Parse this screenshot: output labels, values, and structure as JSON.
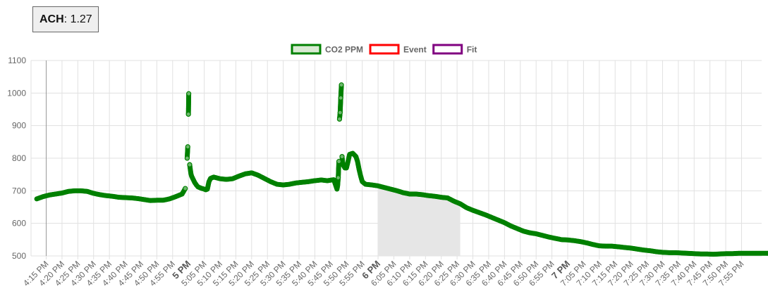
{
  "metric": {
    "label": "ACH",
    "value": ": 1.27"
  },
  "chart_data": {
    "type": "scatter",
    "legend_position": "top-center",
    "grid": true,
    "ylim": [
      500,
      1100
    ],
    "yticks": [
      500,
      600,
      700,
      800,
      900,
      1000,
      1100
    ],
    "xlim_minutes": [
      0,
      225
    ],
    "x_unit": "minutes after 4:10 PM",
    "xticks": [
      {
        "m": 5,
        "label": "4:15 PM",
        "bold": false
      },
      {
        "m": 10,
        "label": "4:20 PM",
        "bold": false
      },
      {
        "m": 15,
        "label": "4:25 PM",
        "bold": false
      },
      {
        "m": 20,
        "label": "4:30 PM",
        "bold": false
      },
      {
        "m": 25,
        "label": "4:35 PM",
        "bold": false
      },
      {
        "m": 30,
        "label": "4:40 PM",
        "bold": false
      },
      {
        "m": 35,
        "label": "4:45 PM",
        "bold": false
      },
      {
        "m": 40,
        "label": "4:50 PM",
        "bold": false
      },
      {
        "m": 45,
        "label": "4:55 PM",
        "bold": false
      },
      {
        "m": 50,
        "label": "5 PM",
        "bold": true
      },
      {
        "m": 55,
        "label": "5:05 PM",
        "bold": false
      },
      {
        "m": 60,
        "label": "5:10 PM",
        "bold": false
      },
      {
        "m": 65,
        "label": "5:15 PM",
        "bold": false
      },
      {
        "m": 70,
        "label": "5:20 PM",
        "bold": false
      },
      {
        "m": 75,
        "label": "5:25 PM",
        "bold": false
      },
      {
        "m": 80,
        "label": "5:30 PM",
        "bold": false
      },
      {
        "m": 85,
        "label": "5:35 PM",
        "bold": false
      },
      {
        "m": 90,
        "label": "5:40 PM",
        "bold": false
      },
      {
        "m": 95,
        "label": "5:45 PM",
        "bold": false
      },
      {
        "m": 100,
        "label": "5:50 PM",
        "bold": false
      },
      {
        "m": 105,
        "label": "5:55 PM",
        "bold": false
      },
      {
        "m": 110,
        "label": "6 PM",
        "bold": true
      },
      {
        "m": 115,
        "label": "6:05 PM",
        "bold": false
      },
      {
        "m": 120,
        "label": "6:10 PM",
        "bold": false
      },
      {
        "m": 125,
        "label": "6:15 PM",
        "bold": false
      },
      {
        "m": 130,
        "label": "6:20 PM",
        "bold": false
      },
      {
        "m": 135,
        "label": "6:25 PM",
        "bold": false
      },
      {
        "m": 140,
        "label": "6:30 PM",
        "bold": false
      },
      {
        "m": 145,
        "label": "6:35 PM",
        "bold": false
      },
      {
        "m": 150,
        "label": "6:40 PM",
        "bold": false
      },
      {
        "m": 155,
        "label": "6:45 PM",
        "bold": false
      },
      {
        "m": 160,
        "label": "6:50 PM",
        "bold": false
      },
      {
        "m": 165,
        "label": "6:55 PM",
        "bold": false
      },
      {
        "m": 170,
        "label": "7 PM",
        "bold": true
      },
      {
        "m": 175,
        "label": "7:05 PM",
        "bold": false
      },
      {
        "m": 180,
        "label": "7:10 PM",
        "bold": false
      },
      {
        "m": 185,
        "label": "7:15 PM",
        "bold": false
      },
      {
        "m": 190,
        "label": "7:20 PM",
        "bold": false
      },
      {
        "m": 195,
        "label": "7:25 PM",
        "bold": false
      },
      {
        "m": 200,
        "label": "7:30 PM",
        "bold": false
      },
      {
        "m": 205,
        "label": "7:35 PM",
        "bold": false
      },
      {
        "m": 210,
        "label": "7:40 PM",
        "bold": false
      },
      {
        "m": 215,
        "label": "7:45 PM",
        "bold": false
      },
      {
        "m": 220,
        "label": "7:50 PM",
        "bold": false
      },
      {
        "m": 225,
        "label": "7:55 PM",
        "bold": false
      }
    ],
    "event_line_m": 5,
    "fit_region": {
      "start_m": 110,
      "end_m": 136
    },
    "series": [
      {
        "name": "CO2 PPM",
        "color": "#008000",
        "fill": "#d9ead3",
        "points": [
          [
            2,
            675
          ],
          [
            4,
            682
          ],
          [
            6,
            687
          ],
          [
            8,
            690
          ],
          [
            10,
            693
          ],
          [
            12,
            698
          ],
          [
            14,
            700
          ],
          [
            16,
            700
          ],
          [
            18,
            698
          ],
          [
            20,
            692
          ],
          [
            22,
            688
          ],
          [
            24,
            685
          ],
          [
            26,
            683
          ],
          [
            28,
            680
          ],
          [
            30,
            679
          ],
          [
            32,
            678
          ],
          [
            34,
            676
          ],
          [
            36,
            673
          ],
          [
            38,
            670
          ],
          [
            40,
            671
          ],
          [
            42,
            671
          ],
          [
            44,
            675
          ],
          [
            46,
            682
          ],
          [
            48,
            690
          ],
          [
            49,
            707
          ],
          [
            49.6,
            800
          ],
          [
            49.8,
            835
          ],
          [
            50,
            935
          ],
          [
            50.1,
            998
          ],
          [
            50.4,
            780
          ],
          [
            50.6,
            765
          ],
          [
            50.8,
            752
          ],
          [
            51,
            745
          ],
          [
            51.5,
            735
          ],
          [
            52,
            725
          ],
          [
            52.5,
            718
          ],
          [
            53,
            712
          ],
          [
            54,
            708
          ],
          [
            55,
            705
          ],
          [
            55.5,
            703
          ],
          [
            56,
            705
          ],
          [
            56.5,
            728
          ],
          [
            57,
            738
          ],
          [
            58,
            742
          ],
          [
            60,
            737
          ],
          [
            62,
            735
          ],
          [
            64,
            737
          ],
          [
            66,
            745
          ],
          [
            68,
            752
          ],
          [
            70,
            755
          ],
          [
            72,
            748
          ],
          [
            74,
            738
          ],
          [
            76,
            728
          ],
          [
            78,
            720
          ],
          [
            80,
            718
          ],
          [
            82,
            720
          ],
          [
            84,
            724
          ],
          [
            86,
            726
          ],
          [
            88,
            728
          ],
          [
            90,
            731
          ],
          [
            92,
            733
          ],
          [
            94,
            731
          ],
          [
            96,
            734
          ],
          [
            97,
            705
          ],
          [
            97.2,
            715
          ],
          [
            97.4,
            740
          ],
          [
            97.6,
            790
          ],
          [
            97.8,
            920
          ],
          [
            98,
            940
          ],
          [
            98.2,
            985
          ],
          [
            98.4,
            1025
          ],
          [
            98.6,
            805
          ],
          [
            98.8,
            785
          ],
          [
            99,
            778
          ],
          [
            99.5,
            770
          ],
          [
            100,
            770
          ],
          [
            100.5,
            790
          ],
          [
            101,
            812
          ],
          [
            102,
            815
          ],
          [
            103,
            805
          ],
          [
            103.5,
            790
          ],
          [
            104,
            765
          ],
          [
            104.5,
            745
          ],
          [
            105,
            728
          ],
          [
            106,
            720
          ],
          [
            108,
            718
          ],
          [
            110,
            715
          ],
          [
            112,
            710
          ],
          [
            114,
            705
          ],
          [
            116,
            700
          ],
          [
            118,
            694
          ],
          [
            120,
            690
          ],
          [
            122,
            690
          ],
          [
            124,
            688
          ],
          [
            126,
            685
          ],
          [
            128,
            683
          ],
          [
            130,
            680
          ],
          [
            132,
            678
          ],
          [
            134,
            668
          ],
          [
            136,
            660
          ],
          [
            138,
            648
          ],
          [
            140,
            640
          ],
          [
            142,
            633
          ],
          [
            144,
            626
          ],
          [
            146,
            618
          ],
          [
            148,
            610
          ],
          [
            150,
            602
          ],
          [
            152,
            592
          ],
          [
            154,
            584
          ],
          [
            156,
            576
          ],
          [
            158,
            571
          ],
          [
            160,
            568
          ],
          [
            162,
            563
          ],
          [
            164,
            558
          ],
          [
            166,
            554
          ],
          [
            168,
            550
          ],
          [
            170,
            549
          ],
          [
            172,
            547
          ],
          [
            174,
            544
          ],
          [
            176,
            540
          ],
          [
            178,
            535
          ],
          [
            180,
            531
          ],
          [
            182,
            530
          ],
          [
            184,
            530
          ],
          [
            186,
            528
          ],
          [
            188,
            526
          ],
          [
            190,
            524
          ],
          [
            192,
            521
          ],
          [
            194,
            518
          ],
          [
            196,
            516
          ],
          [
            198,
            513
          ],
          [
            200,
            511
          ],
          [
            202,
            510
          ],
          [
            204,
            510
          ],
          [
            206,
            509
          ],
          [
            208,
            508
          ],
          [
            210,
            507
          ],
          [
            212,
            506
          ],
          [
            214,
            506
          ],
          [
            216,
            505
          ],
          [
            218,
            506
          ],
          [
            220,
            507
          ],
          [
            222,
            507
          ],
          [
            224,
            508
          ],
          [
            226,
            508
          ],
          [
            228,
            508
          ],
          [
            230,
            508
          ],
          [
            232,
            508
          ],
          [
            234,
            508
          ],
          [
            236,
            509
          ],
          [
            238,
            510
          ],
          [
            240,
            510
          ],
          [
            242,
            511
          ],
          [
            244,
            511
          ],
          [
            246,
            511
          ],
          [
            248,
            511
          ],
          [
            250,
            510
          ],
          [
            252,
            510
          ],
          [
            254,
            509
          ],
          [
            256,
            509
          ],
          [
            258,
            510
          ],
          [
            260,
            511
          ]
        ]
      },
      {
        "name": "Event",
        "color": "#ff0000"
      },
      {
        "name": "Fit",
        "color": "#800080"
      }
    ]
  }
}
